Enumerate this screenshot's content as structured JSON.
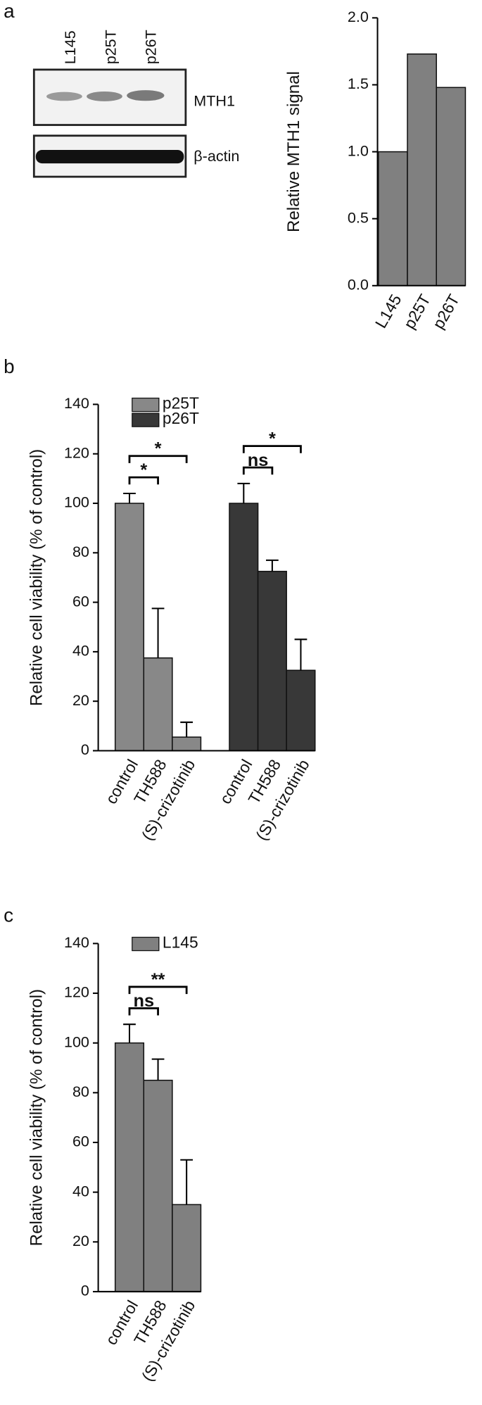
{
  "panel_labels": [
    "a",
    "b",
    "c"
  ],
  "blot": {
    "lanes": [
      "L145",
      "p25T",
      "p26T"
    ],
    "bands": [
      "MTH1",
      "β-actin"
    ]
  },
  "chart_data": [
    {
      "type": "bar",
      "ylabel": "Relative MTH1 signal",
      "categories": [
        "L145",
        "p25T",
        "p26T"
      ],
      "values": [
        1.0,
        1.73,
        1.48
      ],
      "color": "#808080",
      "ylim": [
        0,
        2
      ],
      "yticks": [
        {
          "value": 0,
          "label": "0.0"
        },
        {
          "value": 0.5,
          "label": "0.5"
        },
        {
          "value": 1,
          "label": "1.0"
        },
        {
          "value": 1.5,
          "label": "1.5"
        },
        {
          "value": 2,
          "label": "2.0"
        }
      ]
    },
    {
      "type": "bar",
      "ylabel": "Relative cell viability (% of control)",
      "categories": [
        "control",
        "TH588",
        "(S)-crizotinib"
      ],
      "series": [
        {
          "name": "p25T",
          "color": "#888888",
          "values": [
            100,
            37.5,
            5.5
          ],
          "errors": [
            4,
            20,
            6
          ]
        },
        {
          "name": "p26T",
          "color": "#383838",
          "values": [
            100,
            72.5,
            32.5
          ],
          "errors": [
            8,
            4.5,
            12.5
          ]
        }
      ],
      "significance": [
        {
          "series": 0,
          "from": 0,
          "to": 1,
          "label": "*"
        },
        {
          "series": 0,
          "from": 0,
          "to": 2,
          "label": "*"
        },
        {
          "series": 1,
          "from": 0,
          "to": 1,
          "label": "ns"
        },
        {
          "series": 1,
          "from": 0,
          "to": 2,
          "label": "*"
        }
      ],
      "ylim": [
        0,
        140
      ],
      "yticks": [
        0,
        20,
        40,
        60,
        80,
        100,
        120,
        140
      ]
    },
    {
      "type": "bar",
      "ylabel": "Relative cell viability (% of control)",
      "categories": [
        "control",
        "TH588",
        "(S)-crizotinib"
      ],
      "series": [
        {
          "name": "L145",
          "color": "#808080",
          "values": [
            100,
            85,
            35
          ],
          "errors": [
            7.5,
            8.5,
            18
          ]
        }
      ],
      "significance": [
        {
          "series": 0,
          "from": 0,
          "to": 1,
          "label": "ns"
        },
        {
          "series": 0,
          "from": 0,
          "to": 2,
          "label": "**"
        }
      ],
      "ylim": [
        0,
        140
      ],
      "yticks": [
        0,
        20,
        40,
        60,
        80,
        100,
        120,
        140
      ]
    }
  ]
}
